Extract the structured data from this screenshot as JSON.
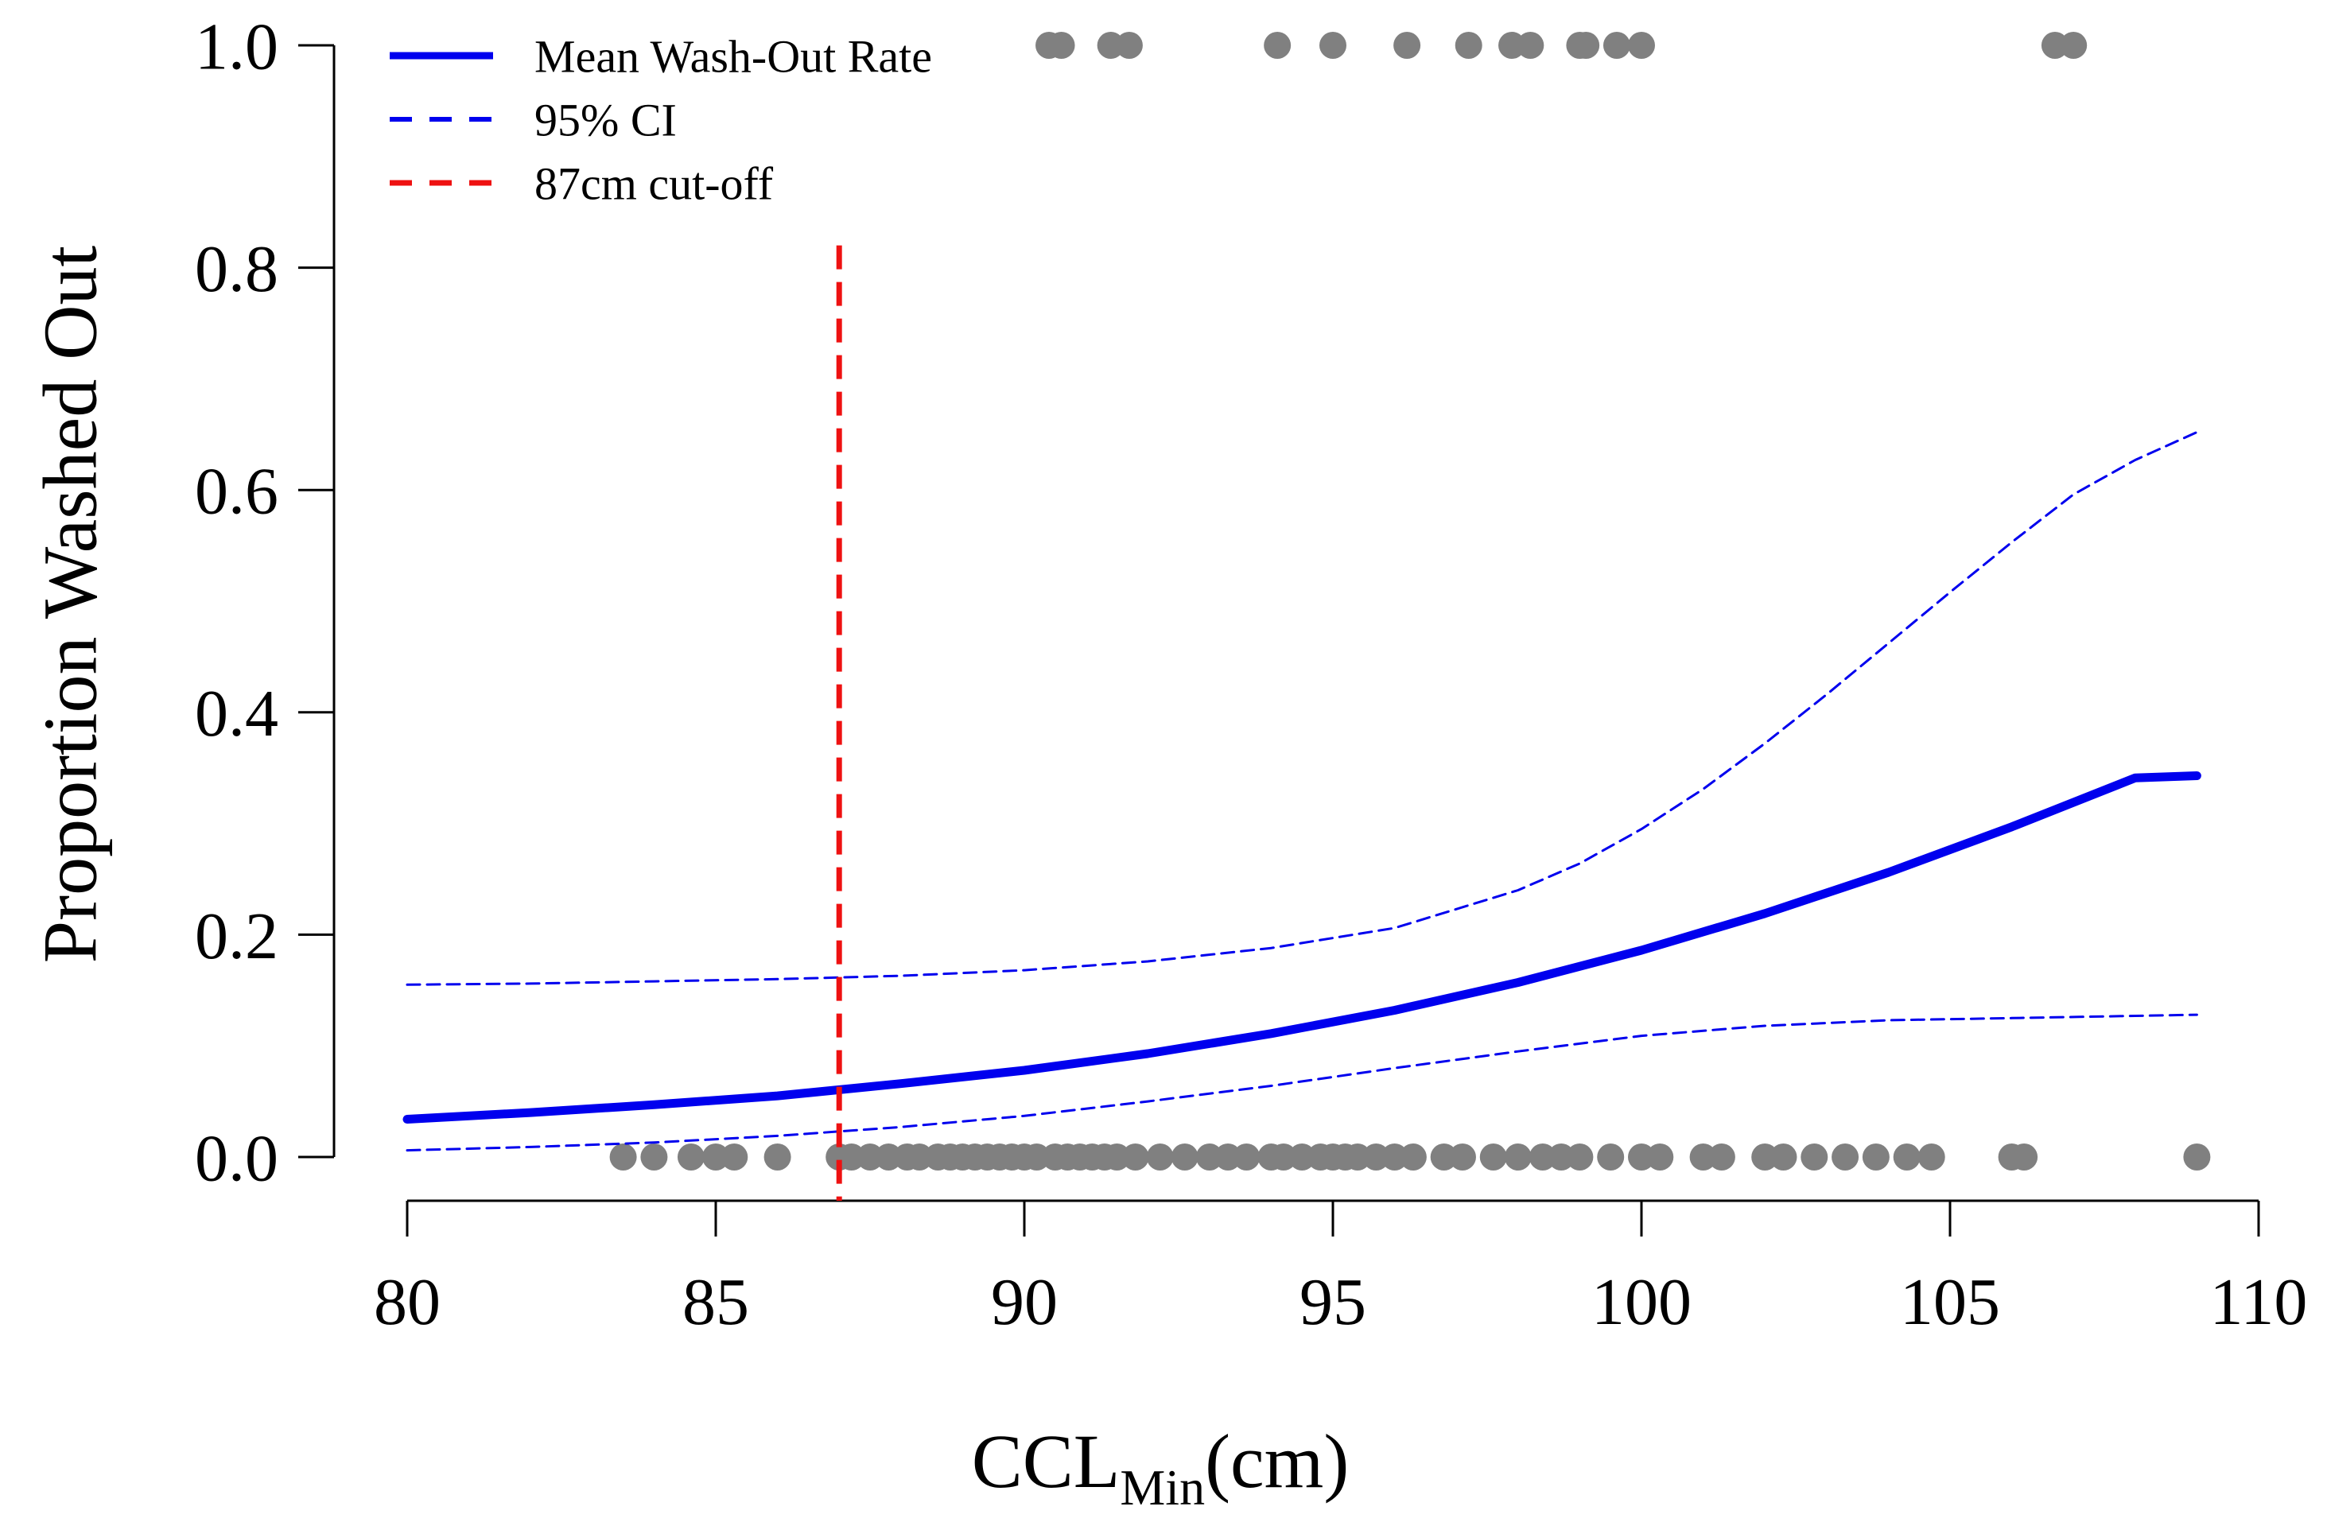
{
  "chart_data": {
    "type": "scatter",
    "title": "",
    "xlabel_main": "CCL",
    "xlabel_sub": "Min",
    "xlabel_suffix": "(cm)",
    "ylabel": "Proportion Washed Out",
    "xlim": [
      80,
      110
    ],
    "ylim": [
      0,
      1
    ],
    "x_ticks": [
      80,
      85,
      90,
      95,
      100,
      105,
      110
    ],
    "x_tick_labels": [
      "80",
      "85",
      "90",
      "95",
      "100",
      "105",
      "110"
    ],
    "y_ticks": [
      0,
      0.2,
      0.4,
      0.6,
      0.8,
      1.0
    ],
    "y_tick_labels": [
      "0.0",
      "0.2",
      "0.4",
      "0.6",
      "0.8",
      "1.0"
    ],
    "grid": false,
    "legend_position": "top-left",
    "legend": [
      {
        "label": "Mean Wash-Out Rate",
        "color": "#0000ee",
        "style": "solid"
      },
      {
        "label": "95% CI",
        "color": "#0000ee",
        "style": "dashed"
      },
      {
        "label": "87cm cut-off",
        "color": "#ee1111",
        "style": "dashed"
      }
    ],
    "series": [
      {
        "name": "Mean Wash-Out Rate",
        "color": "#0000ee",
        "style": "solid",
        "x": [
          80,
          82,
          84,
          86,
          88,
          90,
          92,
          94,
          96,
          98,
          100,
          102,
          104,
          106,
          108,
          109
        ],
        "y": [
          0.034,
          0.04,
          0.047,
          0.055,
          0.066,
          0.078,
          0.093,
          0.111,
          0.132,
          0.157,
          0.186,
          0.219,
          0.256,
          0.297,
          0.341,
          0.343
        ]
      },
      {
        "name": "95% CI upper",
        "color": "#0000ee",
        "style": "dashed",
        "x": [
          80,
          82,
          84,
          86,
          88,
          90,
          92,
          94,
          96,
          98,
          99,
          100,
          101,
          102,
          103,
          104,
          105,
          106,
          107,
          108,
          109
        ],
        "y": [
          0.155,
          0.156,
          0.158,
          0.16,
          0.163,
          0.168,
          0.176,
          0.188,
          0.206,
          0.24,
          0.264,
          0.295,
          0.331,
          0.372,
          0.416,
          0.462,
          0.508,
          0.553,
          0.596,
          0.627,
          0.652
        ]
      },
      {
        "name": "95% CI lower",
        "color": "#0000ee",
        "style": "dashed",
        "x": [
          80,
          82,
          84,
          86,
          88,
          90,
          92,
          94,
          96,
          98,
          100,
          102,
          104,
          106,
          108,
          109
        ],
        "y": [
          0.006,
          0.009,
          0.013,
          0.019,
          0.027,
          0.037,
          0.05,
          0.064,
          0.08,
          0.095,
          0.109,
          0.118,
          0.123,
          0.125,
          0.127,
          0.128
        ]
      }
    ],
    "cutoff": {
      "label": "87cm cut-off",
      "x": 87,
      "y_top": 0.82,
      "color": "#ee1111"
    },
    "points": {
      "color": "#808080",
      "washed_out": [
        90.4,
        90.6,
        91.4,
        91.7,
        94.1,
        95.0,
        96.2,
        97.2,
        97.9,
        98.2,
        99.0,
        99.1,
        99.6,
        100.0,
        106.7,
        107.0
      ],
      "not_washed_out": [
        83.5,
        84.0,
        84.6,
        85.0,
        85.3,
        86.0,
        87.0,
        87.2,
        87.5,
        87.8,
        88.1,
        88.3,
        88.6,
        88.8,
        89.0,
        89.2,
        89.4,
        89.6,
        89.8,
        90.0,
        90.2,
        90.5,
        90.7,
        90.9,
        91.1,
        91.3,
        91.5,
        91.8,
        92.2,
        92.6,
        93.0,
        93.3,
        93.6,
        94.0,
        94.2,
        94.5,
        94.8,
        95.0,
        95.2,
        95.4,
        95.7,
        96.0,
        96.3,
        96.8,
        97.1,
        97.6,
        98.0,
        98.4,
        98.7,
        99.0,
        99.5,
        100.0,
        100.3,
        101.0,
        101.3,
        102.0,
        102.3,
        102.8,
        103.3,
        103.8,
        104.3,
        104.7,
        106.0,
        106.2,
        109.0
      ]
    }
  }
}
